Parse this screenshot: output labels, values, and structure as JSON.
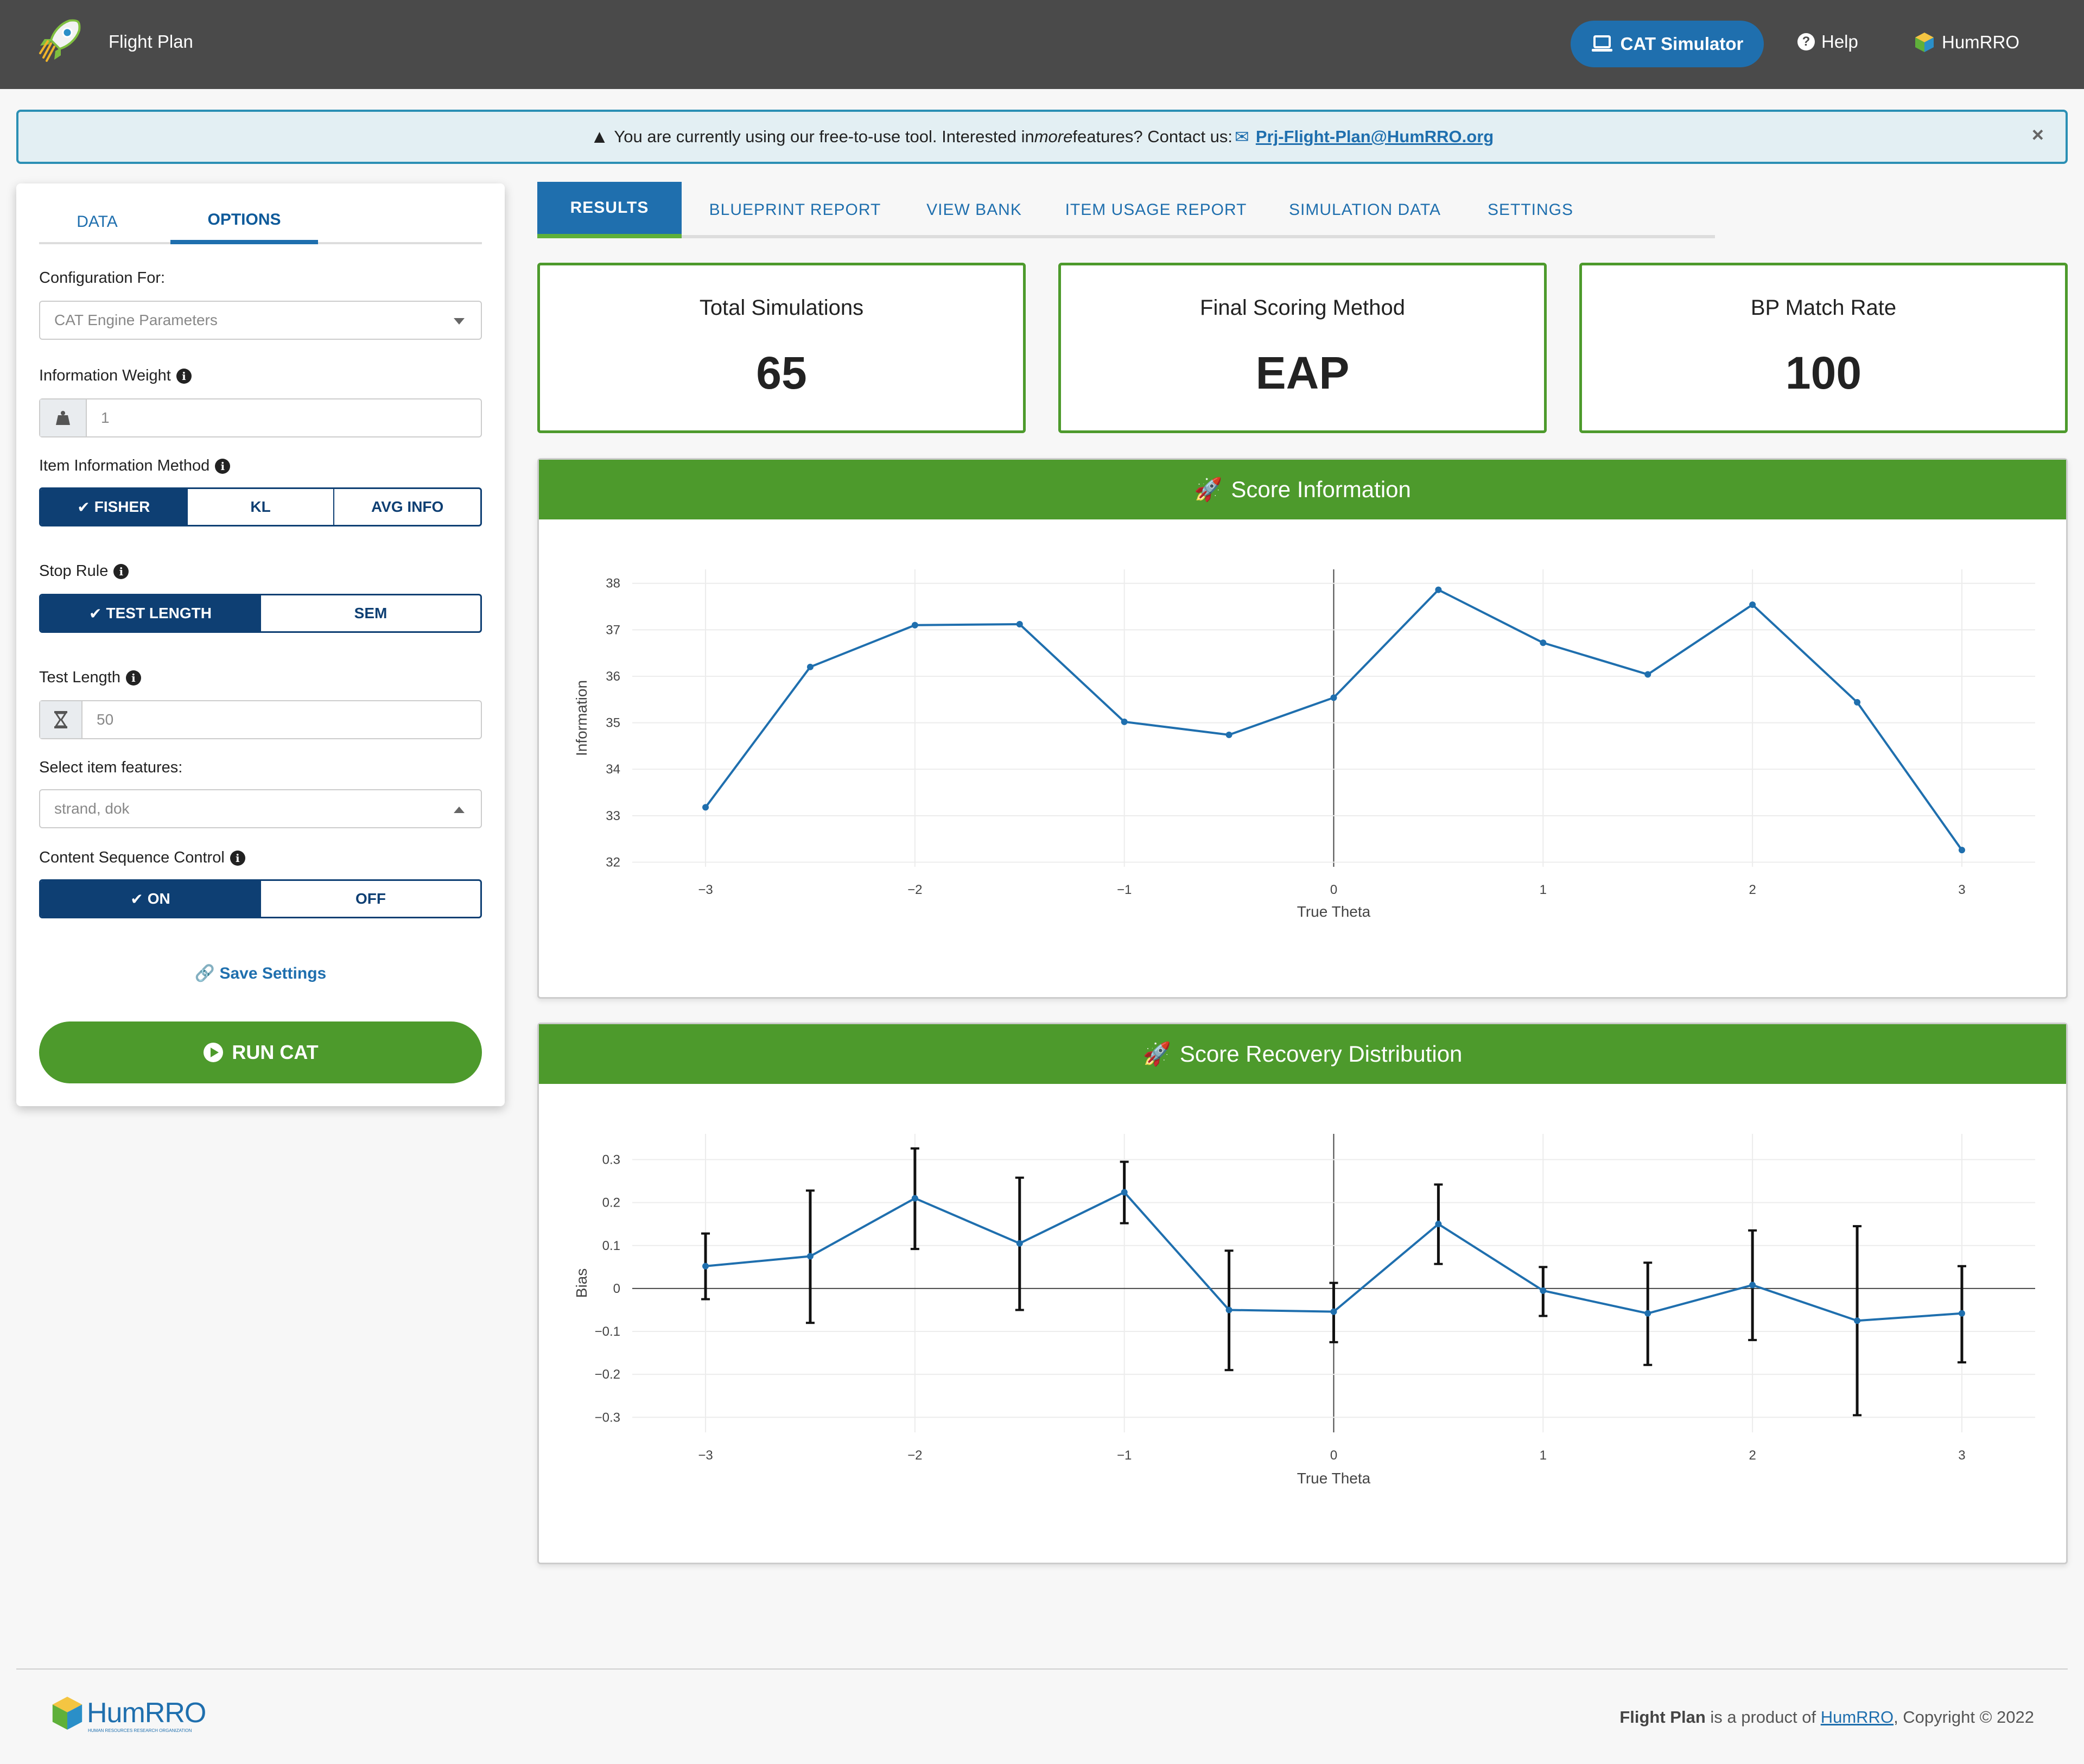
{
  "navbar": {
    "brand": "Flight Plan",
    "cat_simulator": "CAT Simulator",
    "help": "Help",
    "humrro": "HumRRO"
  },
  "alert": {
    "text_before": "You are currently using our free-to-use tool. Interested in ",
    "text_em": "more",
    "text_after": " features? Contact us: ",
    "email": "Prj-Flight-Plan@HumRRO.org",
    "close": "×"
  },
  "sidebar": {
    "tabs": [
      "DATA",
      "OPTIONS"
    ],
    "config_label": "Configuration For:",
    "config_value": "CAT Engine Parameters",
    "info_weight_label": "Information Weight",
    "info_weight_value": "1",
    "item_info_label": "Item Information Method",
    "item_info_options": [
      "FISHER",
      "KL",
      "AVG INFO"
    ],
    "stop_rule_label": "Stop Rule",
    "stop_rule_options": [
      "TEST LENGTH",
      "SEM"
    ],
    "test_length_label": "Test Length",
    "test_length_value": "50",
    "features_label": "Select item features:",
    "features_value": "strand, dok",
    "content_seq_label": "Content Sequence Control",
    "content_seq_options": [
      "ON",
      "OFF"
    ],
    "save_settings": "Save Settings",
    "run_cat": "RUN CAT"
  },
  "main_tabs": [
    "RESULTS",
    "BLUEPRINT REPORT",
    "VIEW BANK",
    "ITEM USAGE REPORT",
    "SIMULATION DATA",
    "SETTINGS"
  ],
  "stats": [
    {
      "title": "Total Simulations",
      "value": "65"
    },
    {
      "title": "Final Scoring Method",
      "value": "EAP"
    },
    {
      "title": "BP Match Rate",
      "value": "100"
    }
  ],
  "score_information": {
    "header": "Score Information"
  },
  "score_recovery": {
    "header": "Score Recovery Distribution"
  },
  "chart_data": [
    {
      "type": "line",
      "title": "Score Information",
      "xlabel": "True Theta",
      "ylabel": "Information",
      "xlim": [
        -3.35,
        3.35
      ],
      "ylim": [
        31.9,
        38.3
      ],
      "xticks": [
        -3,
        -2,
        -1,
        0,
        1,
        2,
        3
      ],
      "xtick_labels": [
        "−3",
        "−2",
        "−1",
        "0",
        "1",
        "2",
        "3"
      ],
      "yticks": [
        32,
        33,
        34,
        35,
        36,
        37,
        38
      ],
      "grid": true,
      "x": [
        -3,
        -2.5,
        -2,
        -1.5,
        -1,
        -0.5,
        0,
        0.5,
        1,
        1.5,
        2,
        2.5,
        3
      ],
      "y": [
        33.18,
        36.2,
        37.1,
        37.12,
        35.02,
        34.74,
        35.54,
        37.86,
        36.72,
        36.04,
        37.54,
        35.44,
        32.26
      ],
      "color": "#1f6fae"
    },
    {
      "type": "scatter",
      "title": "Score Recovery Distribution",
      "xlabel": "True Theta",
      "ylabel": "Bias",
      "xlim": [
        -3.35,
        3.35
      ],
      "ylim": [
        -0.335,
        0.36
      ],
      "xticks": [
        -3,
        -2,
        -1,
        0,
        1,
        2,
        3
      ],
      "xtick_labels": [
        "−3",
        "−2",
        "−1",
        "0",
        "1",
        "2",
        "3"
      ],
      "yticks": [
        -0.3,
        -0.2,
        -0.1,
        0,
        0.1,
        0.2,
        0.3
      ],
      "ytick_labels": [
        "−0.3",
        "−0.2",
        "−0.1",
        "0",
        "0.1",
        "0.2",
        "0.3"
      ],
      "grid": true,
      "x": [
        -3,
        -2.5,
        -2,
        -1.5,
        -1,
        -0.5,
        0,
        0.5,
        1,
        1.5,
        2,
        2.5,
        3
      ],
      "y": [
        0.052,
        0.075,
        0.21,
        0.105,
        0.224,
        -0.05,
        -0.054,
        0.15,
        -0.005,
        -0.058,
        0.008,
        -0.075,
        -0.058
      ],
      "err_lower": [
        -0.025,
        -0.08,
        0.092,
        -0.05,
        0.152,
        -0.19,
        -0.125,
        0.057,
        -0.064,
        -0.178,
        -0.12,
        -0.295,
        -0.172
      ],
      "err_upper": [
        0.128,
        0.228,
        0.326,
        0.258,
        0.295,
        0.088,
        0.013,
        0.242,
        0.05,
        0.06,
        0.135,
        0.145,
        0.052
      ],
      "color": "#1f6fae"
    }
  ],
  "footer": {
    "logo_text": "HumRRO",
    "logo_sub": "HUMAN RESOURCES RESEARCH ORGANIZATION",
    "product": "Flight Plan",
    "is_a_product_of": " is a product of ",
    "org": "HumRRO",
    "copyright": ", Copyright © 2022"
  },
  "colors": {
    "navbar": "#4a4a4a",
    "primary": "#1f6fae",
    "green": "#4d9a2c",
    "navy": "#0e3f73"
  }
}
